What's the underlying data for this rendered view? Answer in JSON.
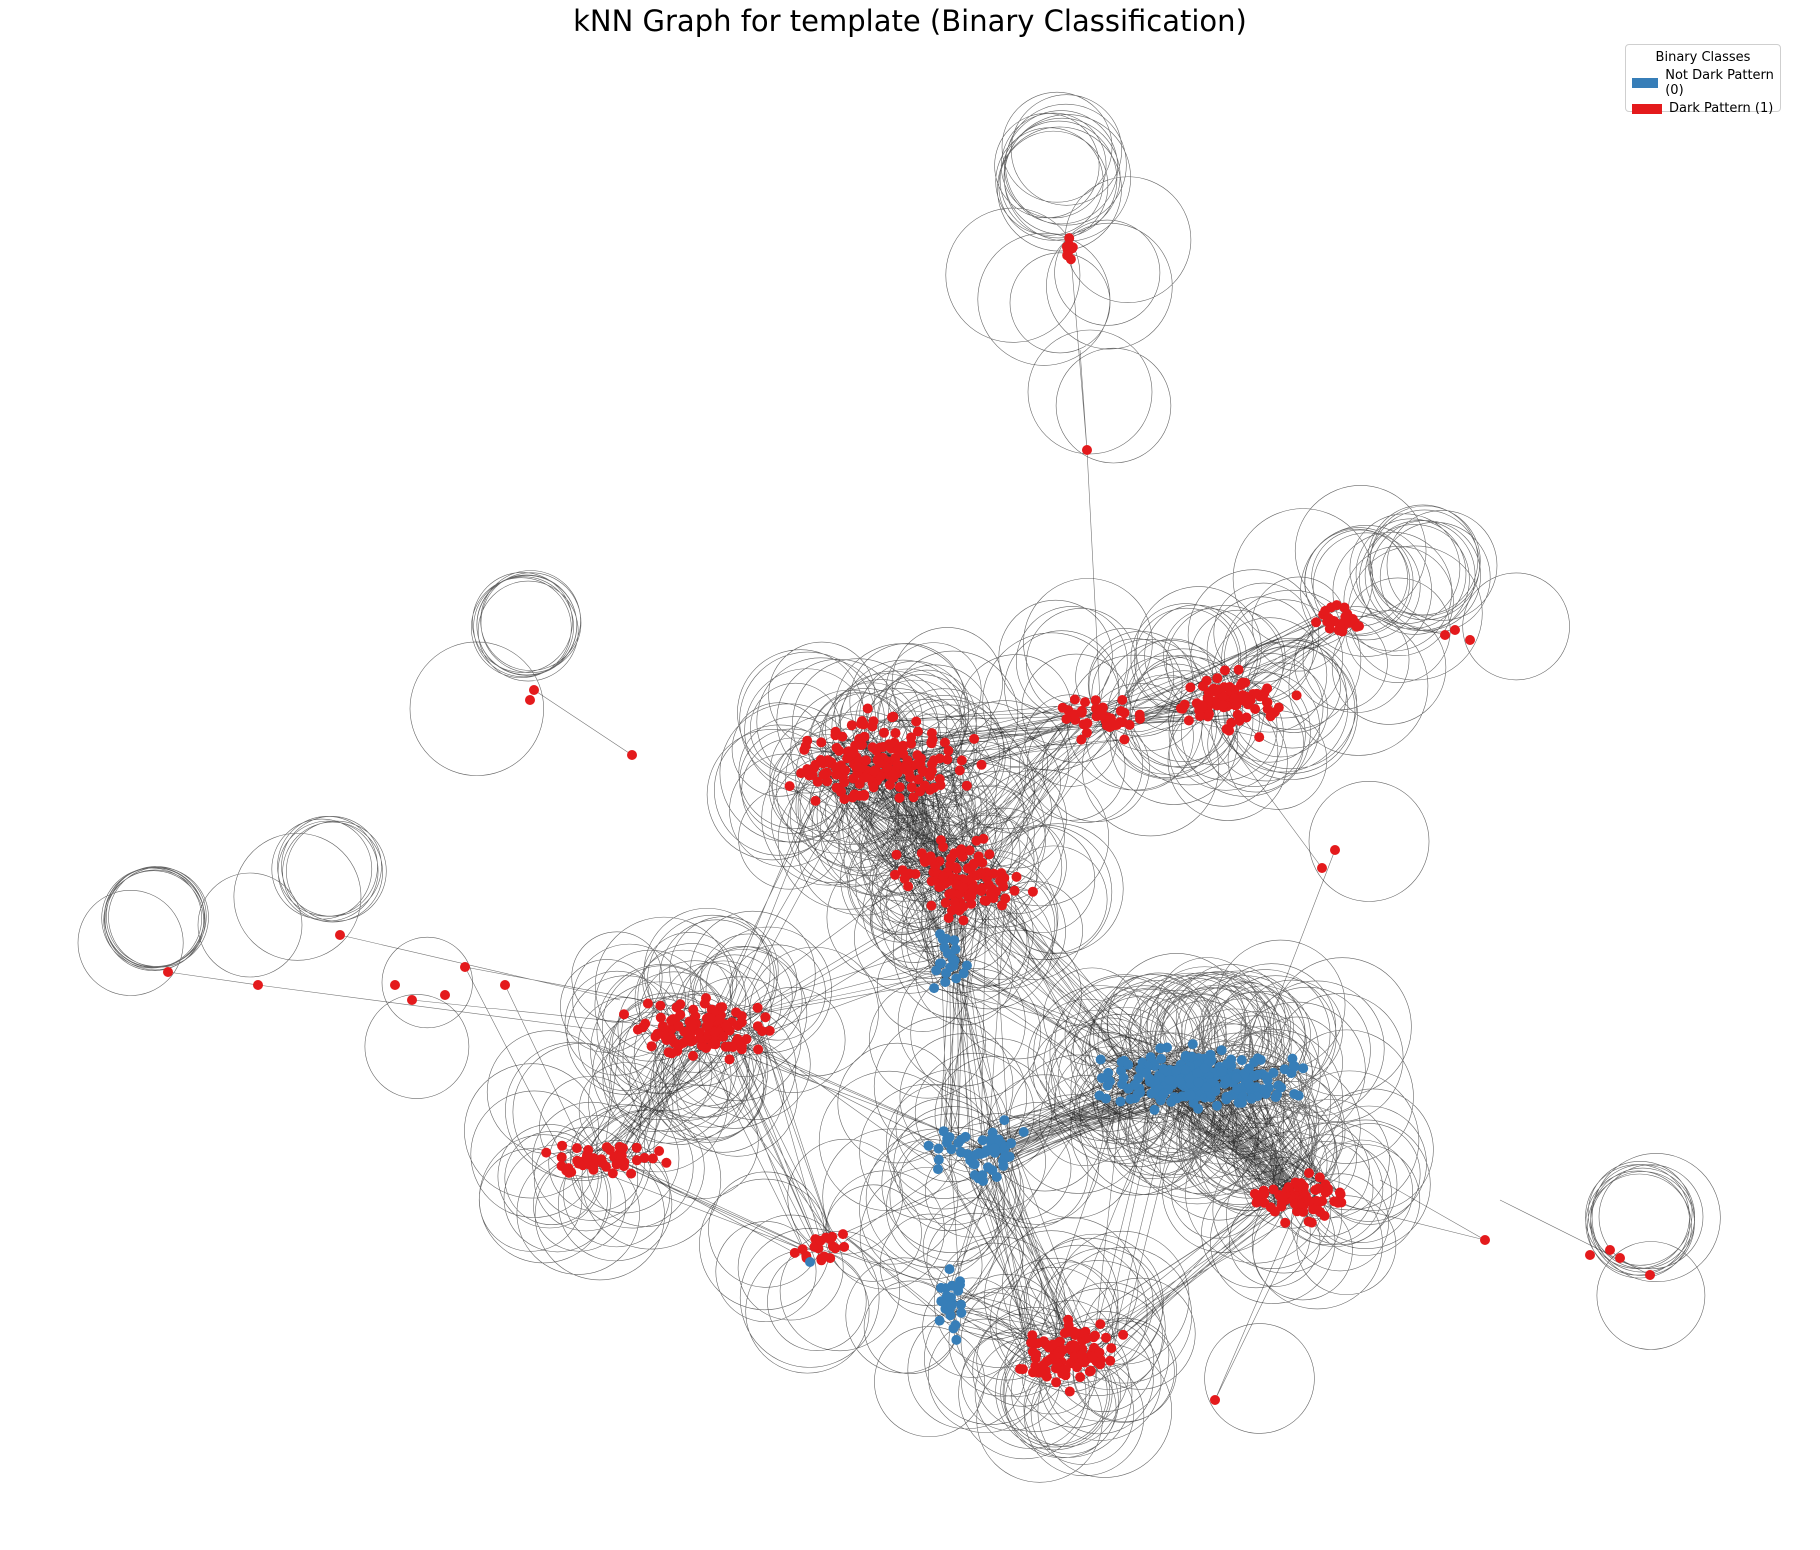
{
  "title": "kNN Graph for template (Binary Classification)",
  "legend": {
    "title": "Binary Classes",
    "items": [
      {
        "label": "Not Dark Pattern (0)",
        "color": "#377eb8"
      },
      {
        "label": "Dark Pattern (1)",
        "color": "#e41a1c"
      }
    ]
  },
  "colors": {
    "class0": "#377eb8",
    "class1": "#e41a1c",
    "edge": "#000000"
  }
}
